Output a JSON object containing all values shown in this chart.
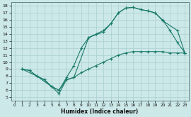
{
  "xlabel": "Humidex (Indice chaleur)",
  "bg_color": "#cce8e8",
  "line_color": "#1a7a6a",
  "grid_color": "#aacfcf",
  "xlim": [
    -0.5,
    23.5
  ],
  "ylim": [
    4.5,
    18.5
  ],
  "xticks": [
    0,
    1,
    2,
    3,
    4,
    5,
    6,
    7,
    8,
    9,
    10,
    11,
    12,
    13,
    14,
    15,
    16,
    17,
    18,
    19,
    20,
    21,
    22,
    23
  ],
  "yticks": [
    5,
    6,
    7,
    8,
    9,
    10,
    11,
    12,
    13,
    14,
    15,
    16,
    17,
    18
  ],
  "curve1_x": [
    1,
    2,
    3,
    4,
    5,
    6,
    7,
    8,
    9,
    10,
    11,
    12,
    13,
    14,
    15,
    16,
    17,
    18,
    19,
    20,
    21,
    22,
    23
  ],
  "curve1_y": [
    9,
    8.8,
    8,
    7.5,
    6.5,
    6.0,
    7.5,
    7.8,
    8.5,
    9.0,
    9.5,
    10.0,
    10.5,
    11.0,
    11.3,
    11.5,
    11.5,
    11.5,
    11.5,
    11.5,
    11.3,
    11.3,
    11.3
  ],
  "curve2_x": [
    1,
    2,
    3,
    4,
    5,
    6,
    7,
    8,
    9,
    10,
    11,
    12,
    13,
    14,
    15,
    16,
    17,
    18,
    19,
    20,
    21,
    22,
    23
  ],
  "curve2_y": [
    9,
    8.8,
    8,
    7.5,
    6.5,
    6.0,
    7.8,
    9.5,
    12.0,
    13.5,
    14.0,
    14.5,
    15.5,
    17.0,
    17.7,
    17.8,
    17.5,
    17.3,
    17.0,
    16.0,
    14.5,
    12.8,
    11.3
  ],
  "curve3_x": [
    1,
    3,
    5,
    6,
    7,
    8,
    10,
    12,
    13,
    14,
    15,
    16,
    17,
    18,
    19,
    20,
    22,
    23
  ],
  "curve3_y": [
    9,
    8,
    6.5,
    5.5,
    7.5,
    7.8,
    13.5,
    14.3,
    15.5,
    17.0,
    17.7,
    17.8,
    17.5,
    17.3,
    17.0,
    15.9,
    14.5,
    11.3
  ]
}
